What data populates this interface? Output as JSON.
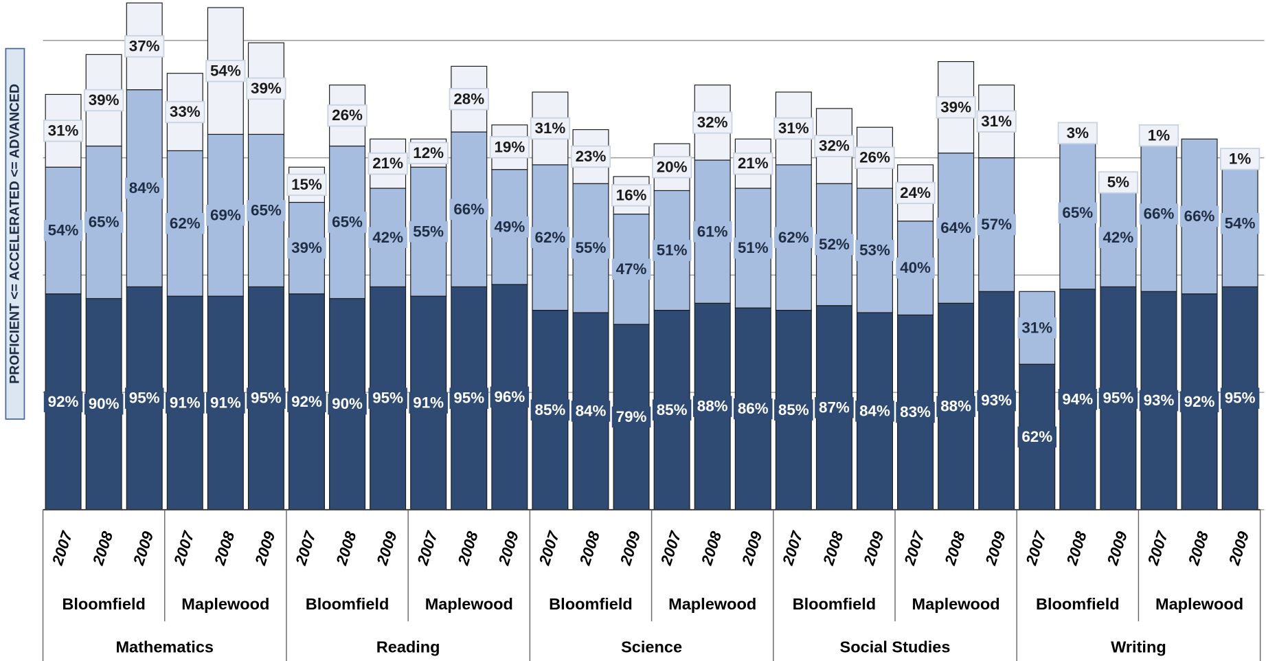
{
  "chart_data": {
    "type": "stacked_bar",
    "y_label": "PROFICIENT <= ACCELERATED <= ADVANCED",
    "categories": [
      "2007",
      "2008",
      "2009",
      "2007",
      "2008",
      "2009",
      "2007",
      "2008",
      "2009",
      "2007",
      "2008",
      "2009",
      "2007",
      "2008",
      "2009",
      "2007",
      "2008",
      "2009",
      "2007",
      "2008",
      "2009",
      "2007",
      "2008",
      "2009",
      "2007",
      "2008",
      "2009",
      "2007",
      "2008",
      "2009"
    ],
    "schools": [
      "Bloomfield",
      "Maplewood",
      "Bloomfield",
      "Maplewood",
      "Bloomfield",
      "Maplewood",
      "Bloomfield",
      "Maplewood",
      "Bloomfield",
      "Maplewood"
    ],
    "subjects": [
      "Mathematics",
      "Reading",
      "Science",
      "Social Studies",
      "Writing"
    ],
    "series": [
      {
        "color": "#2f4b73",
        "label_color": "#ffffff",
        "values": [
          92,
          90,
          95,
          91,
          91,
          95,
          92,
          90,
          95,
          91,
          95,
          96,
          85,
          84,
          79,
          85,
          88,
          86,
          85,
          87,
          84,
          83,
          88,
          93,
          62,
          94,
          95,
          93,
          92,
          95
        ],
        "value_labels": [
          "92%",
          "90%",
          "95%",
          "91%",
          "91%",
          "95%",
          "92%",
          "90%",
          "95%",
          "91%",
          "95%",
          "96%",
          "85%",
          "84%",
          "79%",
          "85%",
          "88%",
          "86%",
          "85%",
          "87%",
          "84%",
          "83%",
          "88%",
          "93%",
          "62%",
          "94%",
          "95%",
          "93%",
          "92%",
          "95%"
        ]
      },
      {
        "color": "#a7bde0",
        "label_color": "#1f2d44",
        "values": [
          54,
          65,
          84,
          62,
          69,
          65,
          39,
          65,
          42,
          55,
          66,
          49,
          62,
          55,
          47,
          51,
          61,
          51,
          62,
          52,
          53,
          40,
          64,
          57,
          31,
          65,
          42,
          66,
          66,
          54
        ],
        "value_labels": [
          "54%",
          "65%",
          "84%",
          "62%",
          "69%",
          "65%",
          "39%",
          "65%",
          "42%",
          "55%",
          "66%",
          "49%",
          "62%",
          "55%",
          "47%",
          "51%",
          "61%",
          "51%",
          "62%",
          "52%",
          "53%",
          "40%",
          "64%",
          "57%",
          "31%",
          "65%",
          "42%",
          "66%",
          "66%",
          "54%"
        ]
      },
      {
        "color": "#eef2f8",
        "label_color": "#1a1a1a",
        "values": [
          31,
          39,
          37,
          33,
          54,
          39,
          15,
          26,
          21,
          12,
          28,
          19,
          31,
          23,
          16,
          20,
          32,
          21,
          31,
          32,
          26,
          24,
          39,
          31,
          null,
          3,
          5,
          1,
          null,
          1
        ],
        "value_labels": [
          "31%",
          "39%",
          "37%",
          "33%",
          "54%",
          "39%",
          "15%",
          "26%",
          "21%",
          "12%",
          "28%",
          "19%",
          "31%",
          "23%",
          "16%",
          "20%",
          "32%",
          "21%",
          "31%",
          "32%",
          "26%",
          "24%",
          "39%",
          "31%",
          null,
          "3%",
          "5%",
          "1%",
          null,
          "1%"
        ]
      }
    ],
    "ylim": [
      0,
      200
    ],
    "yticks": [
      0,
      50,
      100,
      150,
      200
    ],
    "grid": true
  }
}
